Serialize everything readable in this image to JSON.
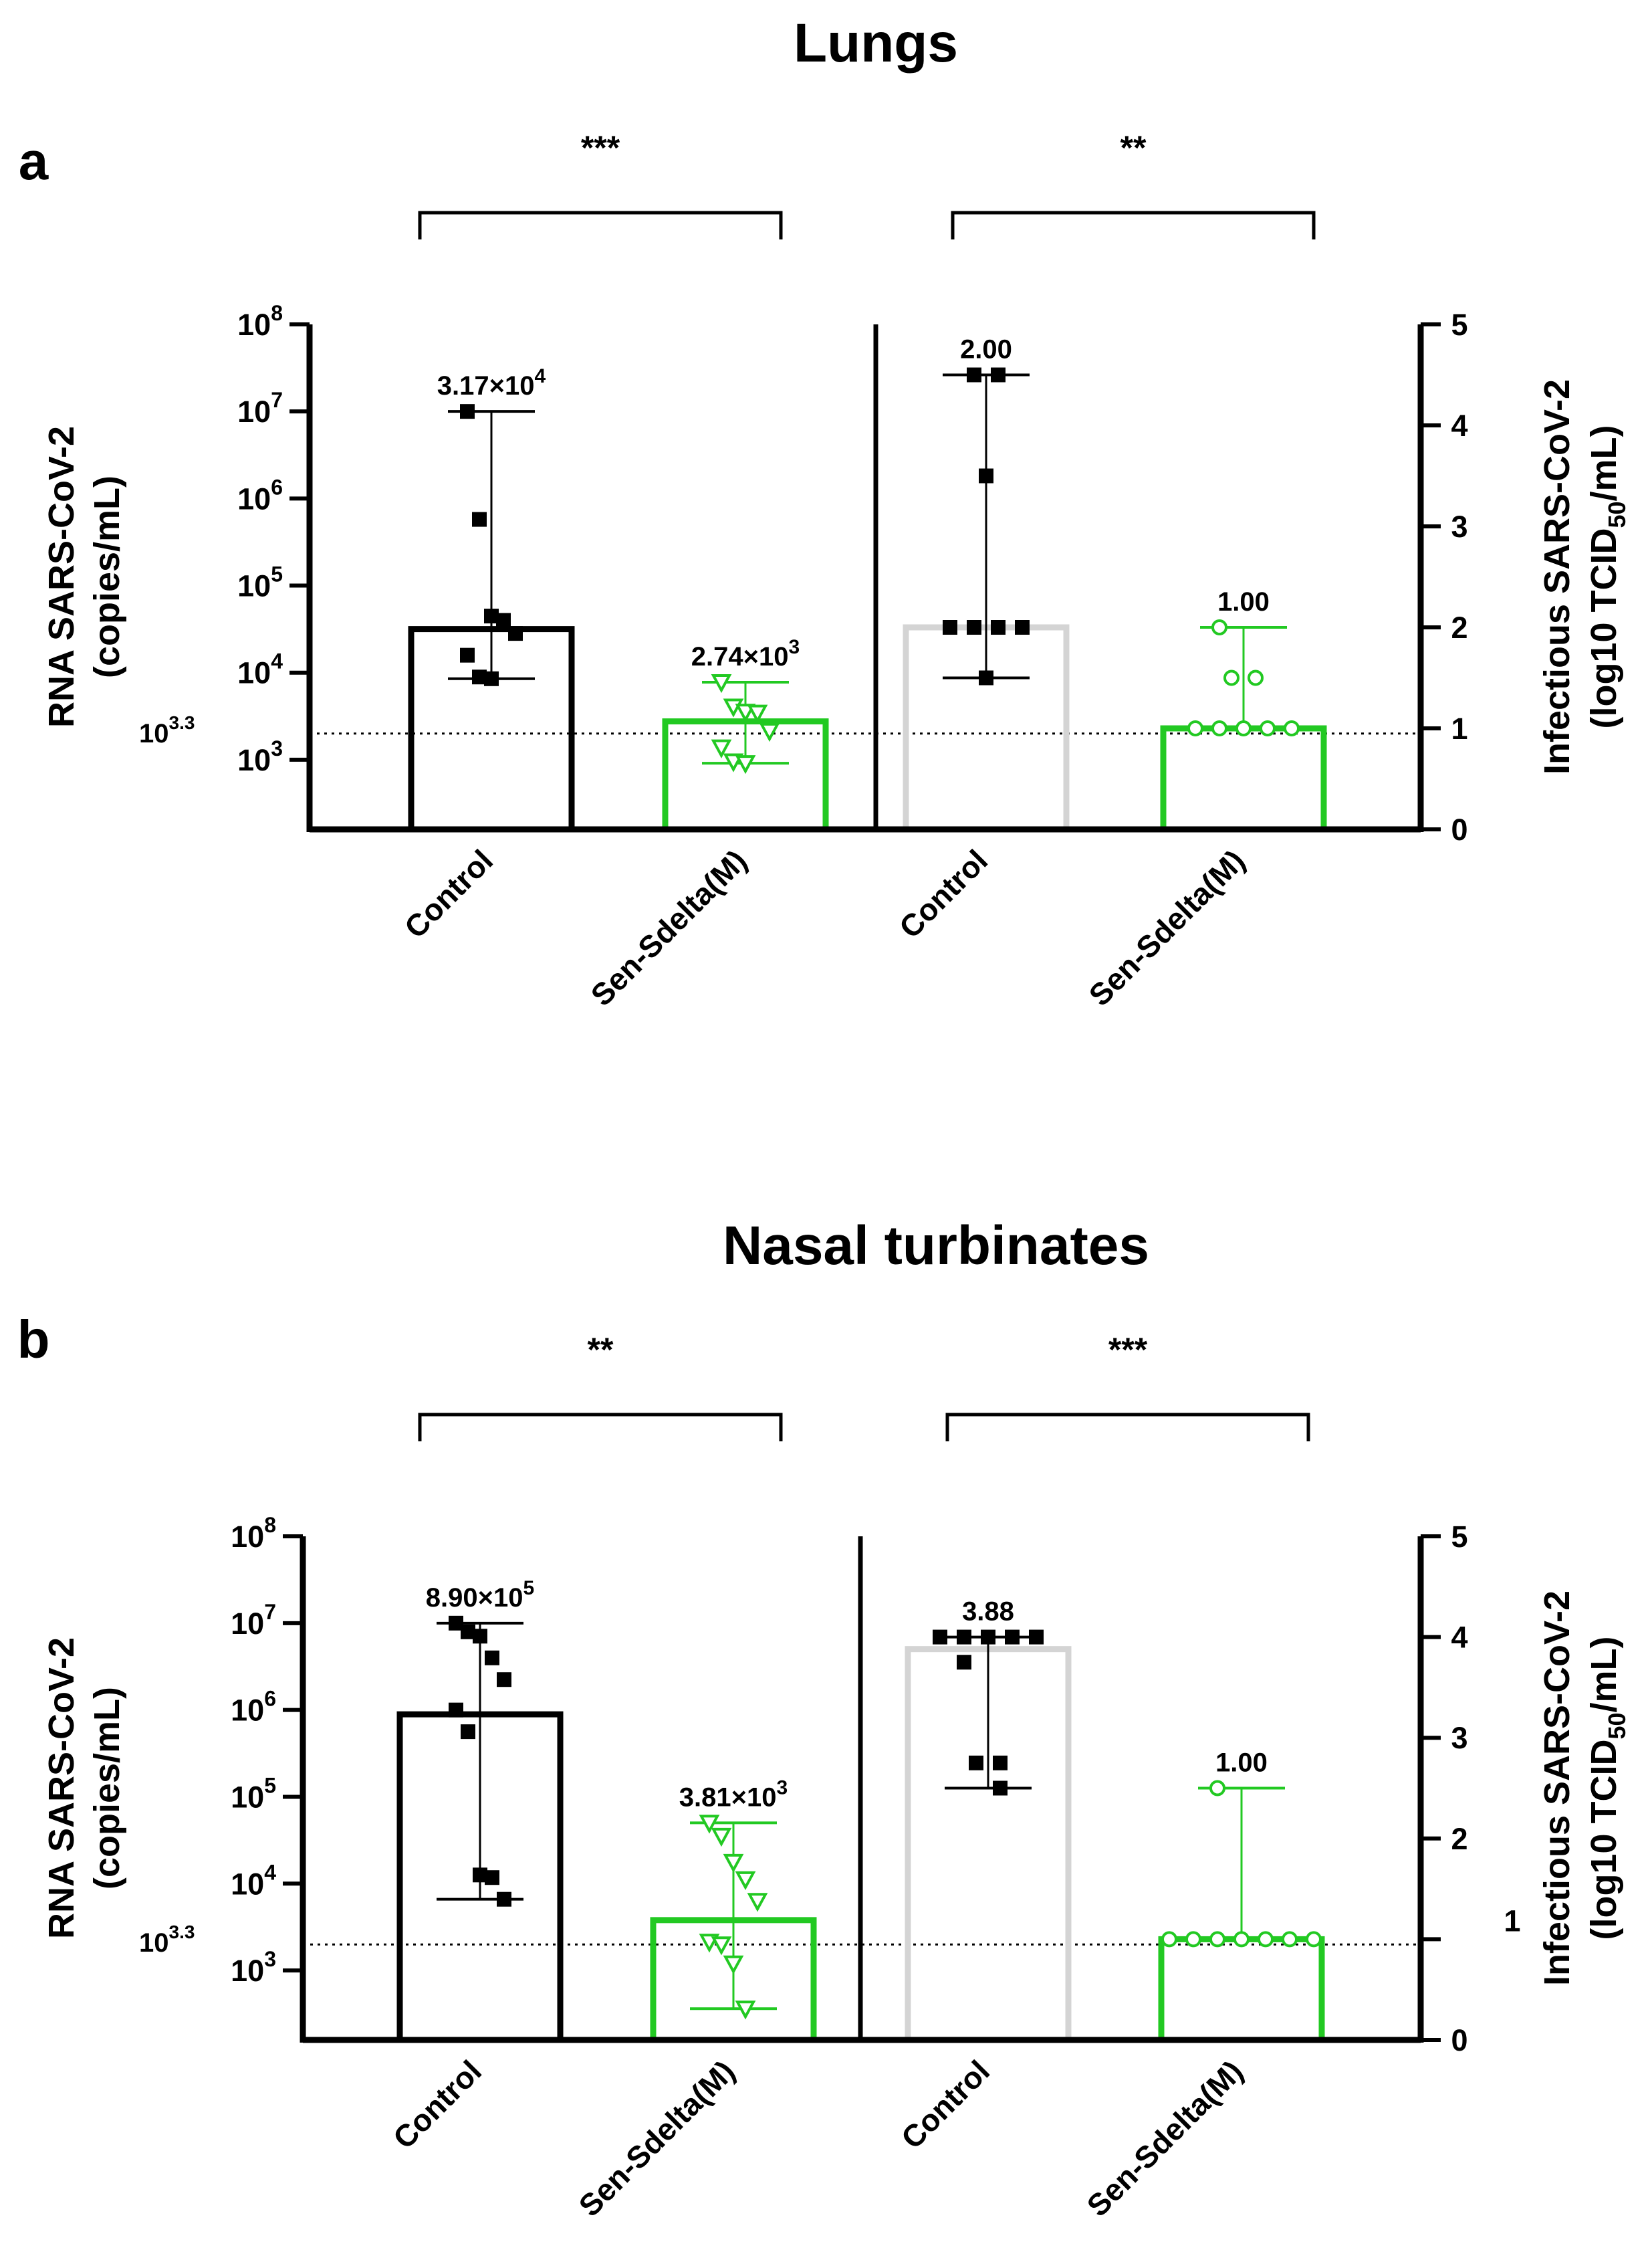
{
  "chart_data": [
    {
      "panel_label": "a",
      "title": "Lungs",
      "type": "bar",
      "left_axis": {
        "ylabel": "RNA SARS-CoV-2\n(copies/mL)",
        "scale": "log10",
        "ylim_log10": [
          2.2,
          8
        ],
        "ticks_log10": [
          3,
          4,
          5,
          6,
          7,
          8
        ],
        "tick_base": "10",
        "lod_log10": 3.3,
        "lod_label_base": "10",
        "lod_label_exp": "3.3"
      },
      "right_axis": {
        "ylabel_main": "Infectious SARS-CoV-2",
        "ylabel_sub_pre": "(log10 TCID",
        "ylabel_sub_script": "50",
        "ylabel_sub_post": "/mL)",
        "ylim": [
          0,
          5
        ],
        "ticks": [
          "0",
          "1",
          "2",
          "3",
          "4",
          "5"
        ],
        "lod": 1
      },
      "groups": [
        {
          "side": "left",
          "category": "Control",
          "color": "#000000",
          "marker": "square",
          "median_label_base": "3.17×10",
          "median_label_exp": "4",
          "bar_value_log10": 4.5,
          "whisker_log10": [
            3.93,
            7.0
          ],
          "points_log10": [
            7.0,
            5.76,
            4.65,
            4.6,
            4.45,
            4.2,
            3.95,
            3.93
          ],
          "significance": "***"
        },
        {
          "side": "left",
          "category": "Sen-Sdelta(M)",
          "color": "#22c922",
          "marker": "triangle-down",
          "median_label_base": "2.74×10",
          "median_label_exp": "3",
          "bar_value_log10": 3.44,
          "whisker_log10": [
            2.96,
            3.89
          ],
          "points_log10": [
            3.89,
            3.61,
            3.55,
            3.54,
            3.33,
            3.14,
            2.98,
            2.96
          ]
        },
        {
          "side": "right",
          "category": "Control",
          "color": "#d4d4d4",
          "point_color": "#000000",
          "marker": "square",
          "median_label_base": "2.00",
          "median_label_exp": "",
          "bar_value": 2.0,
          "whisker": [
            1.5,
            4.5
          ],
          "points": [
            4.5,
            4.5,
            3.5,
            2.0,
            2.0,
            2.0,
            2.0,
            1.5
          ],
          "significance": "**"
        },
        {
          "side": "right",
          "category": "Sen-Sdelta(M)",
          "color": "#22c922",
          "marker": "circle-open",
          "median_label_base": "1.00",
          "median_label_exp": "",
          "bar_value": 1.0,
          "whisker": [
            1.0,
            2.0
          ],
          "points": [
            2.0,
            1.5,
            1.5,
            1.0,
            1.0,
            1.0,
            1.0,
            1.0
          ]
        }
      ]
    },
    {
      "panel_label": "b",
      "title": "Nasal turbinates",
      "type": "bar",
      "left_axis": {
        "ylabel": "RNA SARS-CoV-2\n(copies/mL)",
        "scale": "log10",
        "ylim_log10": [
          2.2,
          8
        ],
        "ticks_log10": [
          3,
          4,
          5,
          6,
          7,
          8
        ],
        "tick_base": "10",
        "lod_log10": 3.3,
        "lod_label_base": "10",
        "lod_label_exp": "3.3"
      },
      "right_axis": {
        "ylabel_main": "Infectious SARS-CoV-2",
        "ylabel_sub_pre": "(log10 TCID",
        "ylabel_sub_script": "50",
        "ylabel_sub_post": "/mL)",
        "ylim": [
          0,
          5
        ],
        "ticks": [
          "0",
          "",
          "2",
          "3",
          "4",
          "5"
        ],
        "lod": 1,
        "stray_tick_label": "1"
      },
      "groups": [
        {
          "side": "left",
          "category": "Control",
          "color": "#000000",
          "marker": "square",
          "median_label_base": "8.90×10",
          "median_label_exp": "5",
          "bar_value_log10": 5.95,
          "whisker_log10": [
            3.82,
            7.0
          ],
          "points_log10": [
            7.0,
            6.9,
            6.85,
            6.6,
            6.35,
            6.0,
            5.75,
            4.1,
            4.07,
            3.82
          ],
          "significance": "**"
        },
        {
          "side": "left",
          "category": "Sen-Sdelta(M)",
          "color": "#22c922",
          "marker": "triangle-down",
          "median_label_base": "3.81×10",
          "median_label_exp": "3",
          "bar_value_log10": 3.58,
          "whisker_log10": [
            2.56,
            4.7
          ],
          "points_log10": [
            4.7,
            4.55,
            4.25,
            4.05,
            3.8,
            3.33,
            3.3,
            3.08,
            2.56
          ]
        },
        {
          "side": "right",
          "category": "Control",
          "color": "#d4d4d4",
          "point_color": "#000000",
          "marker": "square",
          "median_label_base": "3.88",
          "median_label_exp": "",
          "bar_value": 3.88,
          "whisker": [
            2.5,
            4.0
          ],
          "points": [
            4.0,
            4.0,
            4.0,
            4.0,
            4.0,
            3.75,
            2.75,
            2.75,
            2.5
          ],
          "significance": "***"
        },
        {
          "side": "right",
          "category": "Sen-Sdelta(M)",
          "color": "#22c922",
          "marker": "circle-open",
          "median_label_base": "1.00",
          "median_label_exp": "",
          "bar_value": 1.0,
          "whisker": [
            1.0,
            2.5
          ],
          "points": [
            2.5,
            1.0,
            1.0,
            1.0,
            1.0,
            1.0,
            1.0,
            1.0
          ]
        }
      ]
    }
  ]
}
